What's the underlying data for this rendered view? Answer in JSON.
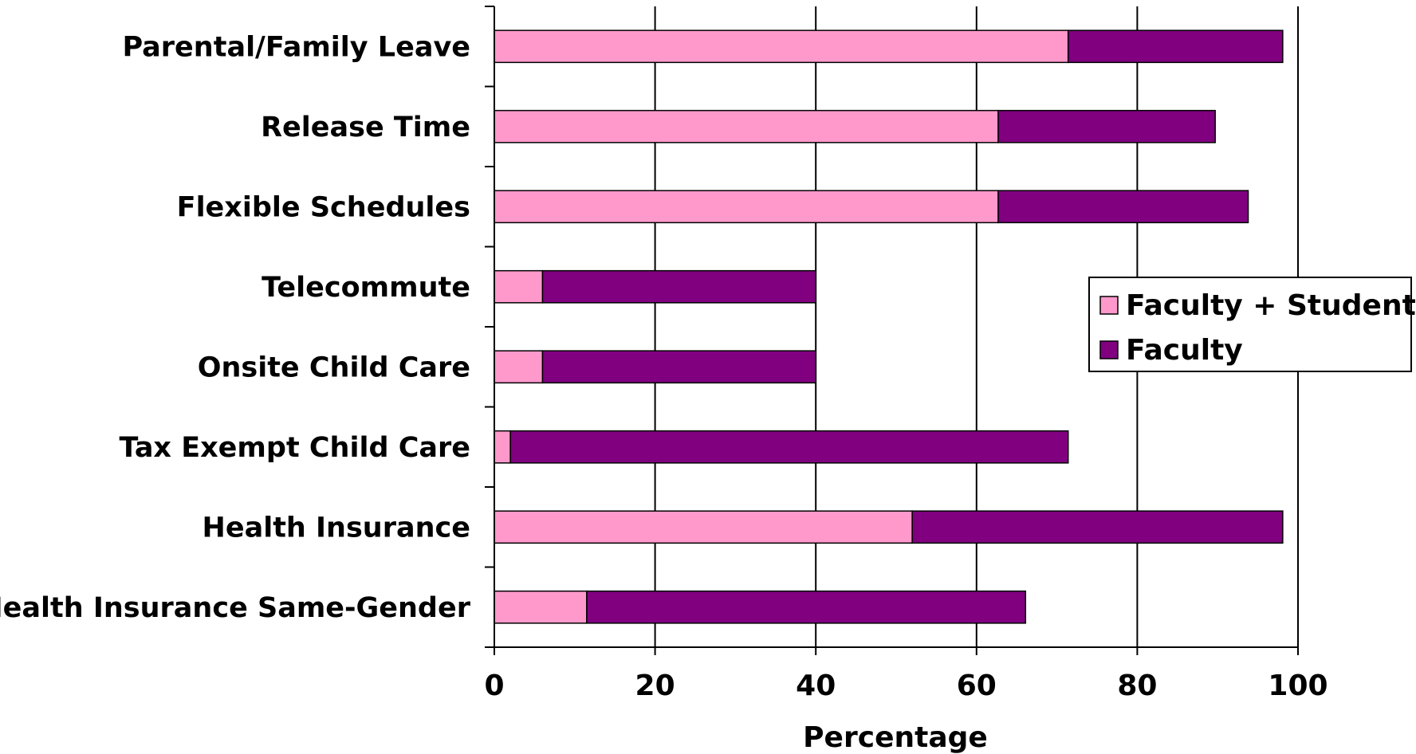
{
  "chart_data": {
    "type": "bar",
    "orientation": "horizontal",
    "stacked": true,
    "categories": [
      "Parental/Family Leave",
      "Release Time",
      "Flexible Schedules",
      "Telecommute",
      "Onsite Child Care",
      "Tax Exempt Child Care",
      "Health Insurance",
      "Health Insurance Same-Gender"
    ],
    "series": [
      {
        "name": "Faculty + Students",
        "color": "#ff99cc",
        "values": [
          71.4,
          62.7,
          62.7,
          6.0,
          6.0,
          2.0,
          52.0,
          11.5
        ]
      },
      {
        "name": "Faculty",
        "color": "#800080",
        "values": [
          26.7,
          27.0,
          31.1,
          34.0,
          34.0,
          69.4,
          46.1,
          54.6
        ]
      }
    ],
    "xlabel": "Percentage",
    "ylabel": "",
    "xlim": [
      0,
      100
    ],
    "xticks": [
      "0",
      "20",
      "40",
      "60",
      "80",
      "100"
    ],
    "grid": "vertical",
    "legend": "right"
  }
}
